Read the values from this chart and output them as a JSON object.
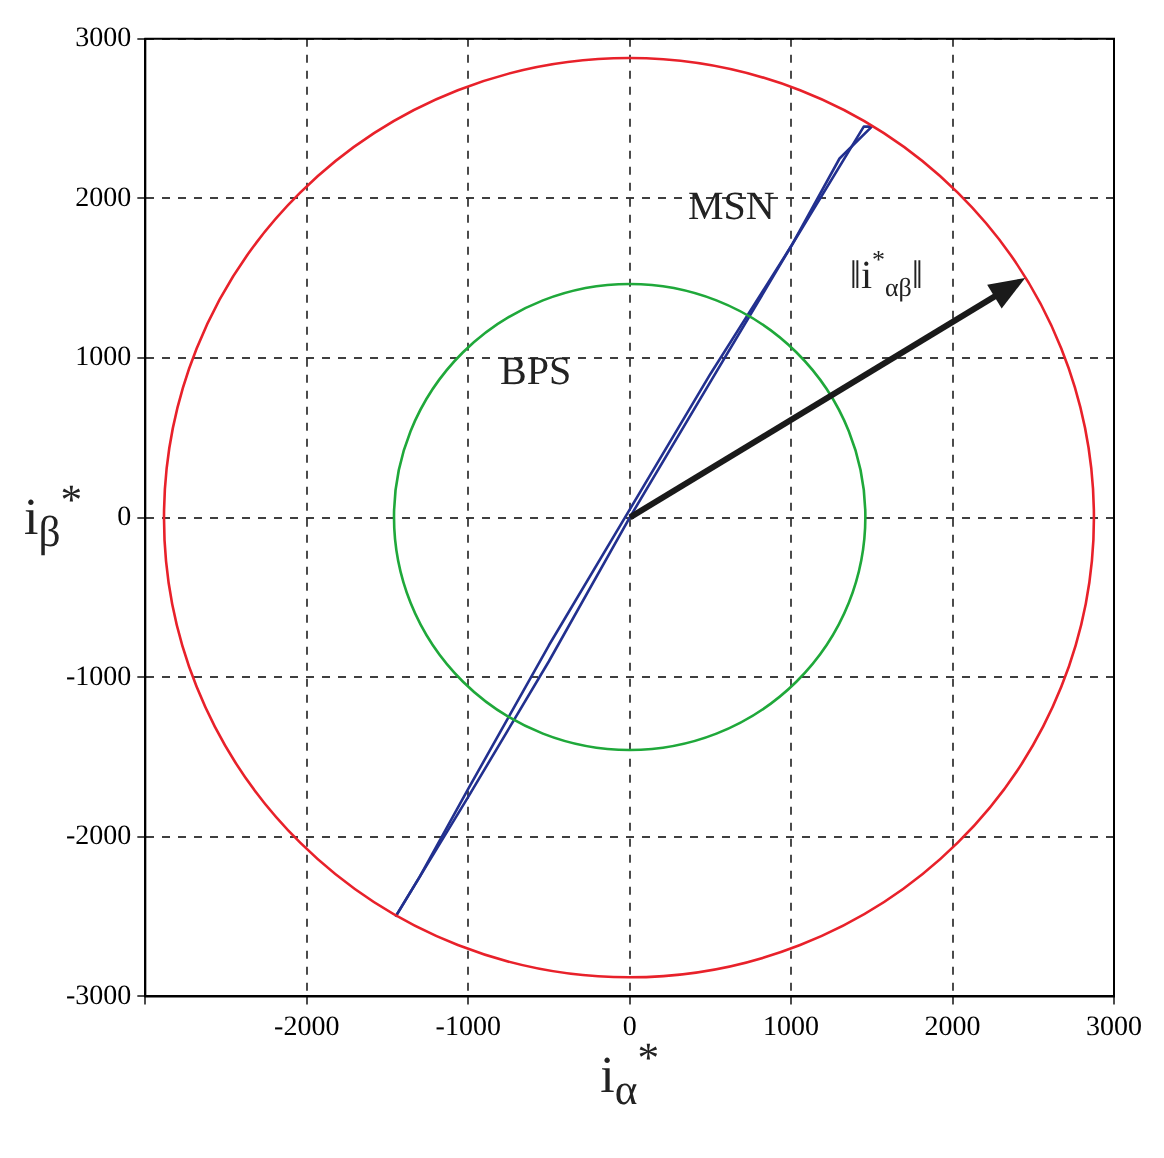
{
  "chart_data": {
    "type": "line",
    "xlabel": "i$_{α}$$^{*}$",
    "ylabel": "i$_{β}$$^{*}$",
    "xlim": [
      -3000,
      3000
    ],
    "ylim": [
      -3000,
      3000
    ],
    "xticks": [
      {
        "value": -3000,
        "label": null
      },
      -2000,
      -1000,
      0,
      1000,
      2000,
      3000
    ],
    "yticks": [
      -3000,
      -2000,
      -1000,
      0,
      1000,
      2000,
      3000
    ],
    "grid": true,
    "line_style": "solid",
    "marker": "none",
    "annotations": [
      "MSN",
      "BPS",
      "‖i$^{*}$$_{αβ}$‖"
    ],
    "series": [
      {
        "color": "#22308f",
        "x": [
          -1450,
          -1000,
          -500,
          0,
          500,
          1000,
          1300,
          1500
        ],
        "values": [
          -2500,
          -1750,
          -900,
          0,
          850,
          1700,
          2250,
          2450
        ]
      },
      {
        "color": "#22308f",
        "x": [
          -1450,
          -1300,
          -1000,
          -500,
          0,
          500,
          1000,
          1450,
          1500
        ],
        "values": [
          -2500,
          -2250,
          -1700,
          -800,
          50,
          900,
          1700,
          2450,
          2450
        ]
      }
    ]
  }
}
